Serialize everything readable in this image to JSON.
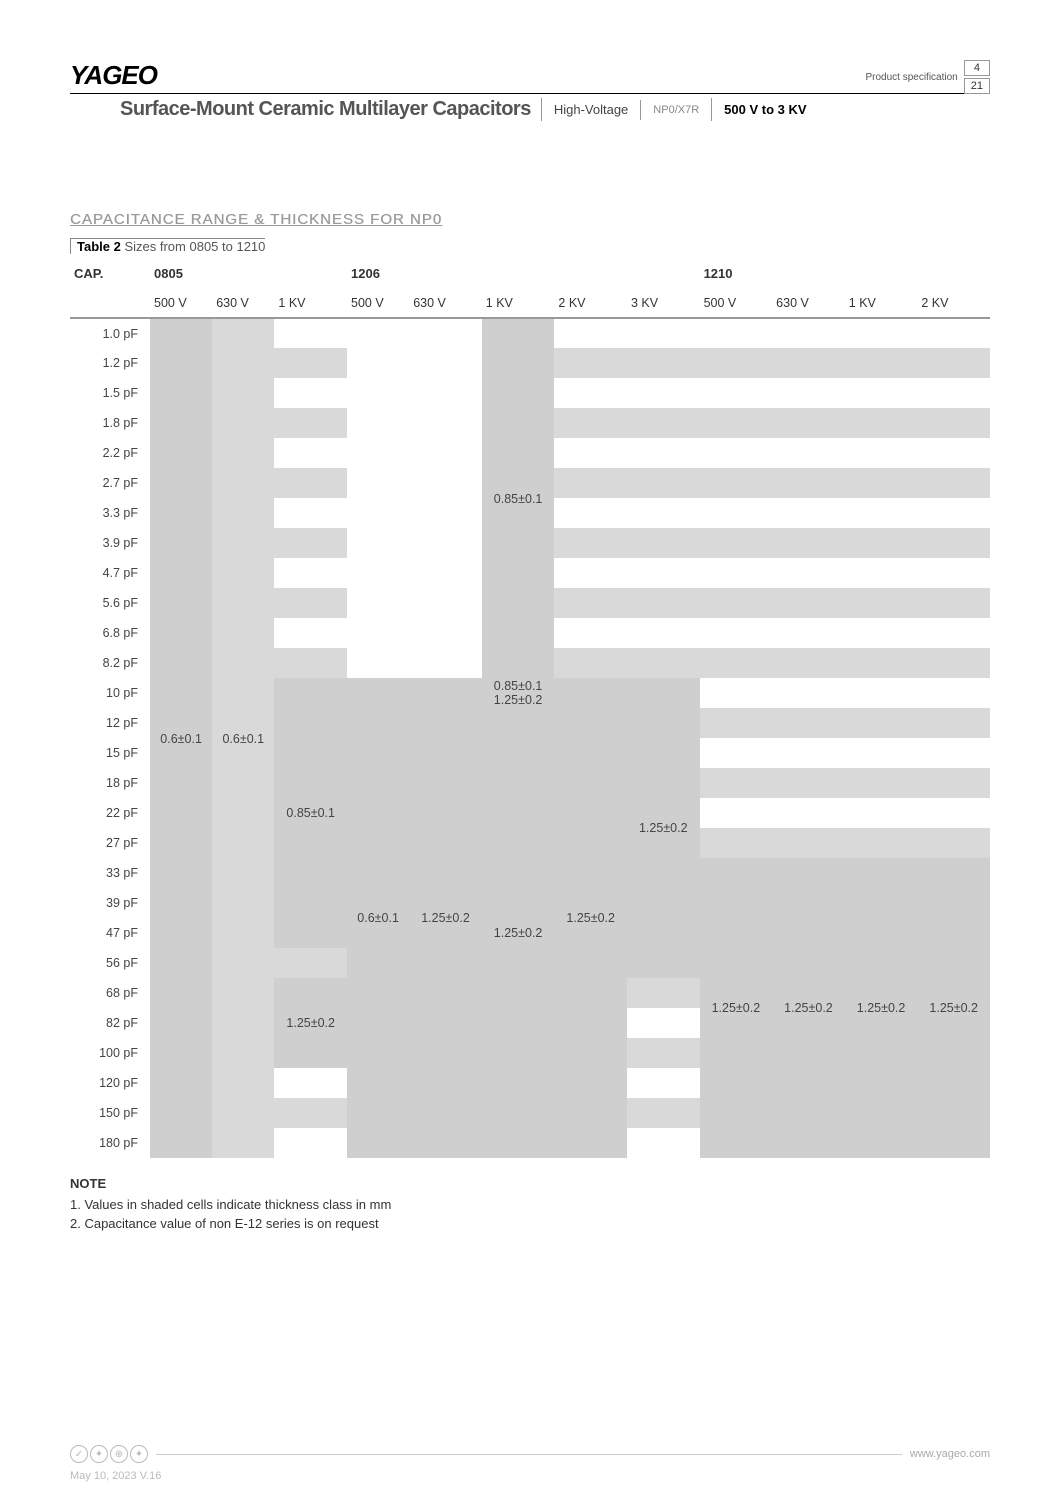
{
  "header": {
    "logo": "YAGEO",
    "title": "Surface-Mount Ceramic Multilayer Capacitors",
    "tag1": "High-Voltage",
    "tag2": "NP0/X7R",
    "tag3": "500 V to 3 KV",
    "spec_label": "Product specification",
    "page": "4",
    "total": "21"
  },
  "section_title": "CAPACITANCE RANGE & THICKNESS FOR NP0",
  "table_caption_bold": "Table 2",
  "table_caption_rest": "Sizes from 0805 to 1210",
  "sizes": [
    "0805",
    "1206",
    "1210"
  ],
  "voltages": {
    "0805": [
      "500 V",
      "630 V",
      "1 KV"
    ],
    "1206": [
      "500 V",
      "630 V",
      "1 KV",
      "2 KV",
      "3 KV"
    ],
    "1210": [
      "500 V",
      "630 V",
      "1 KV",
      "2 KV"
    ]
  },
  "cap_label": "CAP.",
  "rows": [
    "1.0 pF",
    "1.2 pF",
    "1.5 pF",
    "1.8 pF",
    "2.2 pF",
    "2.7 pF",
    "3.3 pF",
    "3.9 pF",
    "4.7 pF",
    "5.6 pF",
    "6.8 pF",
    "8.2 pF",
    "10 pF",
    "12 pF",
    "15 pF",
    "18 pF",
    "22 pF",
    "27 pF",
    "33 pF",
    "39 pF",
    "47 pF",
    "56 pF",
    "68 pF",
    "82 pF",
    "100 pF",
    "120 pF",
    "150 pF",
    "180 pF"
  ],
  "values": {
    "v1": "0.6±0.1",
    "v2": "0.85±0.1",
    "v3": "1.25±0.2",
    "v4": "0.85±0.1\n1.25±0.2"
  },
  "notes": {
    "head": "NOTE",
    "n1": "1. Values in shaded cells indicate thickness class in mm",
    "n2": "2. Capacitance value of non E-12 series is on request"
  },
  "footer": {
    "url": "www.yageo.com",
    "date": "May 10, 2023  V.16"
  },
  "colors": {
    "shade": "#d9d9d9",
    "shade2": "#cfcfcf",
    "text": "#444444"
  }
}
